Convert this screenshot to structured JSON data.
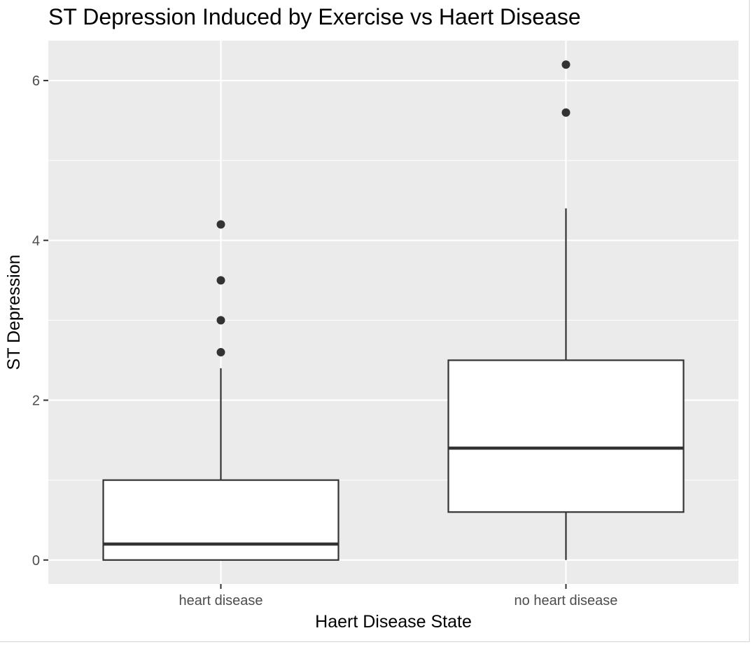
{
  "chart_data": {
    "type": "boxplot",
    "title": "ST Depression Induced by Exercise vs Haert Disease",
    "xlabel": "Haert Disease State",
    "ylabel": "ST Depression",
    "categories": [
      "heart disease",
      "no heart disease"
    ],
    "ylim": [
      -0.3,
      6.5
    ],
    "yticks": [
      0,
      2,
      4,
      6
    ],
    "grid": true,
    "background": "#ebebeb",
    "boxes": [
      {
        "category": "heart disease",
        "whisker_low": 0,
        "q1": 0,
        "median": 0.2,
        "q3": 1.0,
        "whisker_high": 2.4,
        "outliers": [
          2.6,
          3.0,
          3.5,
          4.2
        ]
      },
      {
        "category": "no heart disease",
        "whisker_low": 0,
        "q1": 0.6,
        "median": 1.4,
        "q3": 2.5,
        "whisker_high": 4.4,
        "outliers": [
          5.6,
          6.2
        ]
      }
    ]
  }
}
